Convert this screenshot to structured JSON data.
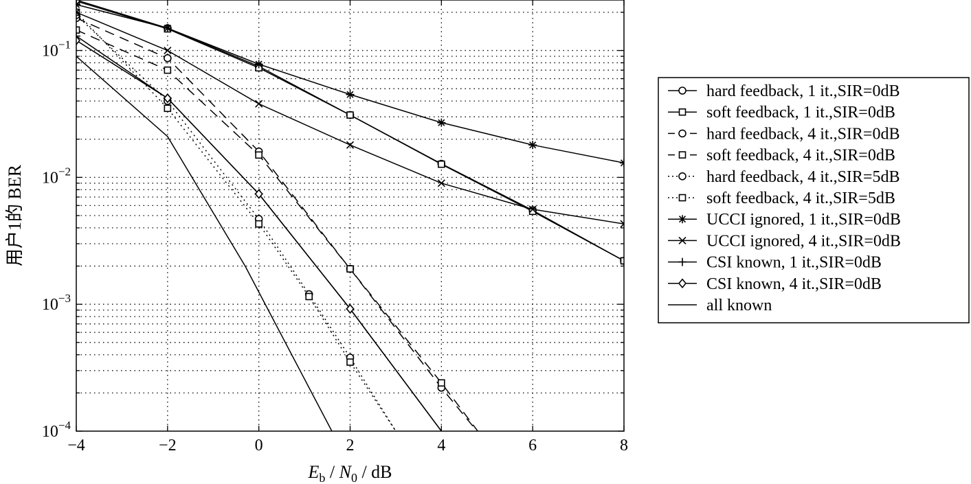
{
  "chart_data": {
    "type": "line",
    "title": "",
    "xlabel": "E_b / N_0 / dB",
    "ylabel": "用户1的 BER",
    "xlim": [
      -4,
      8
    ],
    "ylim": [
      0.0001,
      0.25
    ],
    "yscale": "log",
    "grid": true,
    "legend_position": "outside-right",
    "x_ticks": [
      -4,
      -2,
      0,
      2,
      4,
      6,
      8
    ],
    "x_tick_labels": [
      "−4",
      "−2",
      "0",
      "2",
      "4",
      "6",
      "8"
    ],
    "y_ticks": [
      0.0001,
      0.001,
      0.01,
      0.1
    ],
    "y_tick_labels": [
      {
        "base": "10",
        "exp": "−4"
      },
      {
        "base": "10",
        "exp": "−3"
      },
      {
        "base": "10",
        "exp": "−2"
      },
      {
        "base": "10",
        "exp": "−1"
      }
    ],
    "series": [
      {
        "name": "hard feedback, 1 it.,SIR=0dB",
        "marker": "circle",
        "line": "solid",
        "x": [
          -4,
          -2,
          0,
          2,
          4,
          6,
          8
        ],
        "y": [
          0.25,
          0.15,
          0.075,
          0.031,
          0.0128,
          0.0055,
          0.0022
        ]
      },
      {
        "name": "soft feedback, 1 it.,SIR=0dB",
        "marker": "square",
        "line": "solid",
        "x": [
          -4,
          -2,
          0,
          2,
          4,
          6,
          8
        ],
        "y": [
          0.245,
          0.148,
          0.073,
          0.031,
          0.0127,
          0.0054,
          0.0022
        ]
      },
      {
        "name": "hard feedback, 4 it.,SIR=0dB",
        "marker": "circle",
        "line": "dashed",
        "x": [
          -4,
          -2,
          0,
          2,
          4,
          5
        ],
        "y": [
          0.18,
          0.087,
          0.016,
          0.0019,
          0.00022,
          8e-05
        ]
      },
      {
        "name": "soft feedback, 4 it.,SIR=0dB",
        "marker": "square",
        "line": "dashed",
        "x": [
          -4,
          -2,
          0,
          2,
          4,
          5
        ],
        "y": [
          0.145,
          0.07,
          0.015,
          0.0019,
          0.00024,
          8e-05
        ]
      },
      {
        "name": "hard feedback, 4 it.,SIR=5dB",
        "marker": "circle",
        "line": "dotted",
        "x": [
          -4,
          -2,
          0,
          1.1,
          2,
          3
        ],
        "y": [
          0.19,
          0.04,
          0.0047,
          0.0012,
          0.00038,
          0.0001
        ]
      },
      {
        "name": "soft feedback, 4 it.,SIR=5dB",
        "marker": "square",
        "line": "dotted",
        "x": [
          -4,
          -2,
          0,
          1.1,
          2,
          3
        ],
        "y": [
          0.2,
          0.035,
          0.0043,
          0.00115,
          0.00035,
          0.0001
        ]
      },
      {
        "name": "UCCI ignored, 1 it.,SIR=0dB",
        "marker": "asterisk",
        "line": "solid",
        "x": [
          -4,
          -2,
          0,
          2,
          4,
          6,
          8
        ],
        "y": [
          0.23,
          0.15,
          0.078,
          0.045,
          0.027,
          0.018,
          0.013
        ]
      },
      {
        "name": "UCCI ignored, 4 it.,SIR=0dB",
        "marker": "x",
        "line": "solid",
        "x": [
          -4,
          -2,
          0,
          2,
          4,
          6,
          8
        ],
        "y": [
          0.2,
          0.1,
          0.038,
          0.018,
          0.009,
          0.0056,
          0.0043
        ]
      },
      {
        "name": "CSI known, 1 it.,SIR=0dB",
        "marker": "plus",
        "line": "solid",
        "x": [
          -4,
          -2,
          0,
          2,
          4
        ],
        "y": [
          0.13,
          0.042,
          0.0074,
          0.00092,
          0.0001
        ]
      },
      {
        "name": "CSI known, 4 it.,SIR=0dB",
        "marker": "diamond",
        "line": "solid",
        "x": [
          -4,
          -2,
          0,
          2,
          4
        ],
        "y": [
          0.12,
          0.042,
          0.0074,
          0.00092,
          0.0001
        ]
      },
      {
        "name": "all known",
        "marker": "none",
        "line": "solid",
        "x": [
          -4,
          -2,
          -0.3,
          1.6
        ],
        "y": [
          0.09,
          0.021,
          0.002,
          0.0001
        ]
      }
    ]
  }
}
